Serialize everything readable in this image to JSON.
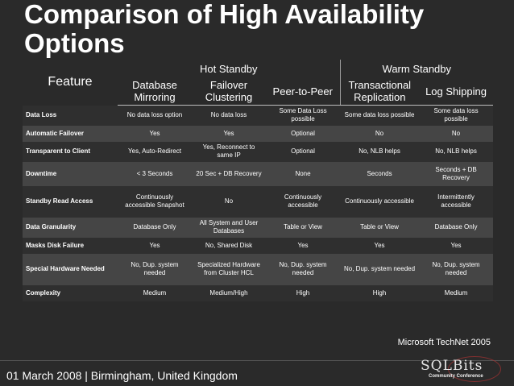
{
  "title": "Comparison of High Availability Options",
  "header": {
    "feature": "Feature",
    "groups": [
      {
        "label": "Hot Standby"
      },
      {
        "label": "Warm Standby"
      }
    ],
    "columns": [
      {
        "label": "Database Mirroring"
      },
      {
        "label": "Failover Clustering"
      },
      {
        "label": "Peer-to-Peer"
      },
      {
        "label": "Transactional Replication"
      },
      {
        "label": "Log Shipping"
      }
    ]
  },
  "rows": [
    {
      "feature": "Data Loss",
      "cells": [
        "No data loss option",
        "No data loss",
        "Some Data Loss possible",
        "Some data loss possible",
        "Some data loss possible"
      ]
    },
    {
      "feature": "Automatic Failover",
      "cells": [
        "Yes",
        "Yes",
        "Optional",
        "No",
        "No"
      ]
    },
    {
      "feature": "Transparent to Client",
      "cells": [
        "Yes, Auto-Redirect",
        "Yes, Reconnect to same IP",
        "Optional",
        "No, NLB helps",
        "No, NLB helps"
      ]
    },
    {
      "feature": "Downtime",
      "cells": [
        "< 3 Seconds",
        "20 Sec + DB Recovery",
        "None",
        "Seconds",
        "Seconds + DB Recovery"
      ]
    },
    {
      "feature": "Standby Read Access",
      "cells": [
        "Continuously accessible Snapshot",
        "No",
        "Continuously accessible",
        "Continuously accessible",
        "Intermittently accessible"
      ]
    },
    {
      "feature": "Data Granularity",
      "cells": [
        "Database Only",
        "All System and User Databases",
        "Table or View",
        "Table or View",
        "Database Only"
      ]
    },
    {
      "feature": "Masks Disk Failure",
      "cells": [
        "Yes",
        "No, Shared Disk",
        "Yes",
        "Yes",
        "Yes"
      ]
    },
    {
      "feature": "Special Hardware Needed",
      "cells": [
        "No, Dup. system needed",
        "Specialized Hardware from Cluster HCL",
        "No, Dup. system needed",
        "No, Dup. system needed",
        "No, Dup. system needed"
      ]
    },
    {
      "feature": "Complexity",
      "cells": [
        "Medium",
        "Medium/High",
        "High",
        "High",
        "Medium"
      ]
    }
  ],
  "source": "Microsoft TechNet 2005",
  "footer": "01 March 2008 | Birmingham, United Kingdom",
  "logo": {
    "text": "SQLBits",
    "subtext": "Community Conference"
  },
  "colors": {
    "background": "#2a2a2a",
    "row_alt": "#454545",
    "text": "#ffffff"
  }
}
